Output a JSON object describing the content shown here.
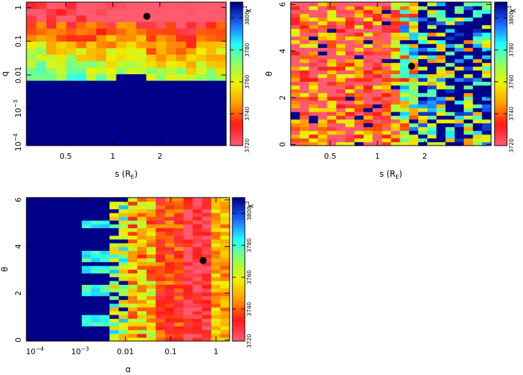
{
  "chart_data": [
    {
      "type": "heatmap",
      "id": "s-q",
      "xlabel": "s (R",
      "xlabel_sub": "E",
      "xlabel_close": ")",
      "ylabel": "q",
      "xscale": "log",
      "yscale": "log",
      "xlim": [
        0.28,
        5.3
      ],
      "ylim": [
        8e-05,
        1.45
      ],
      "xticks": [
        {
          "v": 0.5,
          "label": "0.5"
        },
        {
          "v": 1,
          "label": "1"
        },
        {
          "v": 2,
          "label": "2"
        }
      ],
      "yticks": [
        {
          "v": 0.0001,
          "label": "10",
          "sup": "−4"
        },
        {
          "v": 0.001,
          "label": "10",
          "sup": "−3"
        },
        {
          "v": 0.01,
          "label": "0.01"
        },
        {
          "v": 0.1,
          "label": "0.1"
        },
        {
          "v": 1,
          "label": "1"
        }
      ],
      "best_fit": {
        "x": 1.65,
        "y": 0.55
      },
      "grid": {
        "cols": 20,
        "rows": 22,
        "seed": 11,
        "model": "sq"
      }
    },
    {
      "type": "heatmap",
      "id": "s-theta",
      "xlabel": "s (R",
      "xlabel_sub": "E",
      "xlabel_close": ")",
      "ylabel": "θ",
      "xscale": "log",
      "yscale": "linear",
      "xlim": [
        0.28,
        5.3
      ],
      "ylim": [
        -0.05,
        6.1
      ],
      "xticks": [
        {
          "v": 0.5,
          "label": "0.5"
        },
        {
          "v": 1,
          "label": "1"
        },
        {
          "v": 2,
          "label": "2"
        }
      ],
      "yticks": [
        {
          "v": 0,
          "label": "0"
        },
        {
          "v": 2,
          "label": "2"
        },
        {
          "v": 4,
          "label": "4"
        },
        {
          "v": 6,
          "label": "6"
        }
      ],
      "best_fit": {
        "x": 1.65,
        "y": 3.35
      },
      "grid": {
        "cols": 22,
        "rows": 38,
        "seed": 29,
        "model": "st"
      }
    },
    {
      "type": "heatmap",
      "id": "q-theta",
      "xlabel": "q",
      "ylabel": "θ",
      "xscale": "log",
      "yscale": "linear",
      "xlim": [
        6.5e-05,
        2.0
      ],
      "ylim": [
        -0.05,
        6.1
      ],
      "xticks": [
        {
          "v": 0.0001,
          "label": "10",
          "sup": "−4"
        },
        {
          "v": 0.001,
          "label": "10",
          "sup": "−3"
        },
        {
          "v": 0.01,
          "label": "0.01"
        },
        {
          "v": 0.1,
          "label": "0.1"
        },
        {
          "v": 1,
          "label": "1"
        }
      ],
      "yticks": [
        {
          "v": 0,
          "label": "0"
        },
        {
          "v": 2,
          "label": "2"
        },
        {
          "v": 4,
          "label": "4"
        },
        {
          "v": 6,
          "label": "6"
        }
      ],
      "best_fit": {
        "x": 0.52,
        "y": 3.4
      },
      "grid": {
        "cols": 22,
        "rows": 38,
        "seed": 47,
        "model": "qt"
      }
    }
  ],
  "colorbar": {
    "label": "χ",
    "label_sup": "2",
    "range": [
      3720,
      3810
    ],
    "ticks": [
      {
        "v": 3720,
        "label": "3720"
      },
      {
        "v": 3740,
        "label": "3740"
      },
      {
        "v": 3760,
        "label": "3760"
      },
      {
        "v": 3780,
        "label": "3780"
      },
      {
        "v": 3800,
        "label": "3800"
      }
    ],
    "colors": {
      "min": "#ff5a6e",
      "red": "#ff1a1a",
      "orange": "#ff9a00",
      "yellow": "#f0f000",
      "green": "#90ff60",
      "cyan": "#20ffff",
      "blue": "#1e64ff",
      "max": "#000088"
    }
  }
}
